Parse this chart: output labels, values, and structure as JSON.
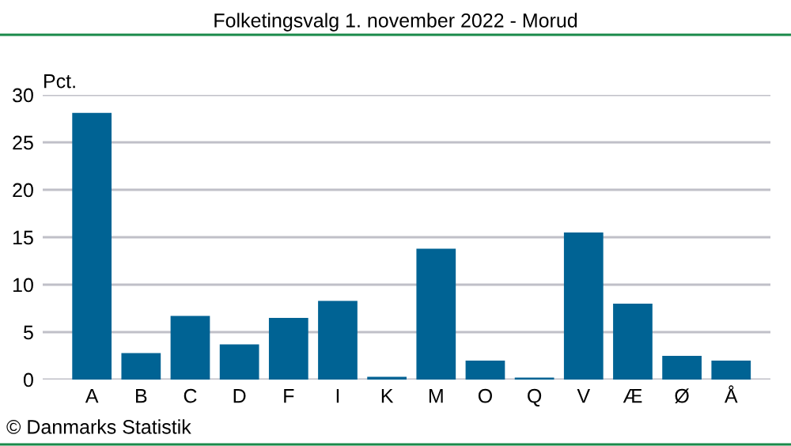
{
  "chart_data": {
    "type": "bar",
    "title": "Folketingsvalg 1. november 2022 - Morud",
    "ylabel": "Pct.",
    "categories": [
      "A",
      "B",
      "C",
      "D",
      "F",
      "I",
      "K",
      "M",
      "O",
      "Q",
      "V",
      "Æ",
      "Ø",
      "Å"
    ],
    "values": [
      28.1,
      2.8,
      6.7,
      3.7,
      6.5,
      8.3,
      0.3,
      13.8,
      2.0,
      0.2,
      15.5,
      8.0,
      2.5,
      2.0
    ],
    "color": "#006394",
    "ylim": [
      0,
      30
    ],
    "yticks": [
      0,
      5,
      10,
      15,
      20,
      25,
      30
    ],
    "grid": "y",
    "annotations": [
      "© Danmarks Statistik"
    ]
  }
}
